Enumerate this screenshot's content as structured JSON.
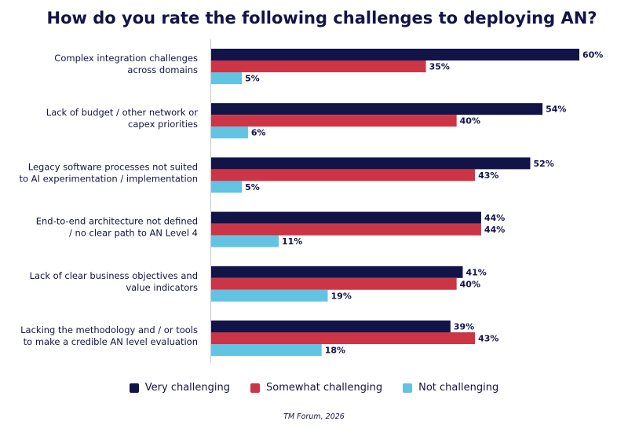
{
  "chart_data": {
    "type": "bar",
    "orientation": "horizontal",
    "title": "How do you rate the following challenges to deploying AN?",
    "categories": [
      [
        "Complex integration challenges",
        "across domains"
      ],
      [
        "Lack of budget / other network or",
        "capex priorities"
      ],
      [
        "Legacy software processes not suited",
        "to AI experimentation / implementation"
      ],
      [
        "End-to-end architecture not defined",
        "/ no clear path to AN Level 4"
      ],
      [
        "Lack of clear business objectives and",
        "value indicators"
      ],
      [
        "Lacking the methodology and / or tools",
        "to make a credible AN level evaluation"
      ]
    ],
    "series": [
      {
        "name": "Very challenging",
        "color": "#121448",
        "values": [
          60,
          54,
          52,
          44,
          41,
          39
        ]
      },
      {
        "name": "Somewhat challenging",
        "color": "#cc3545",
        "values": [
          35,
          40,
          43,
          44,
          40,
          43
        ]
      },
      {
        "name": "Not challenging",
        "color": "#62c3e2",
        "values": [
          5,
          6,
          5,
          11,
          19,
          18
        ]
      }
    ],
    "value_suffix": "%",
    "xlim": [
      0,
      60
    ],
    "legend_position": "bottom",
    "grid": false
  },
  "source": "TM Forum, 2026"
}
